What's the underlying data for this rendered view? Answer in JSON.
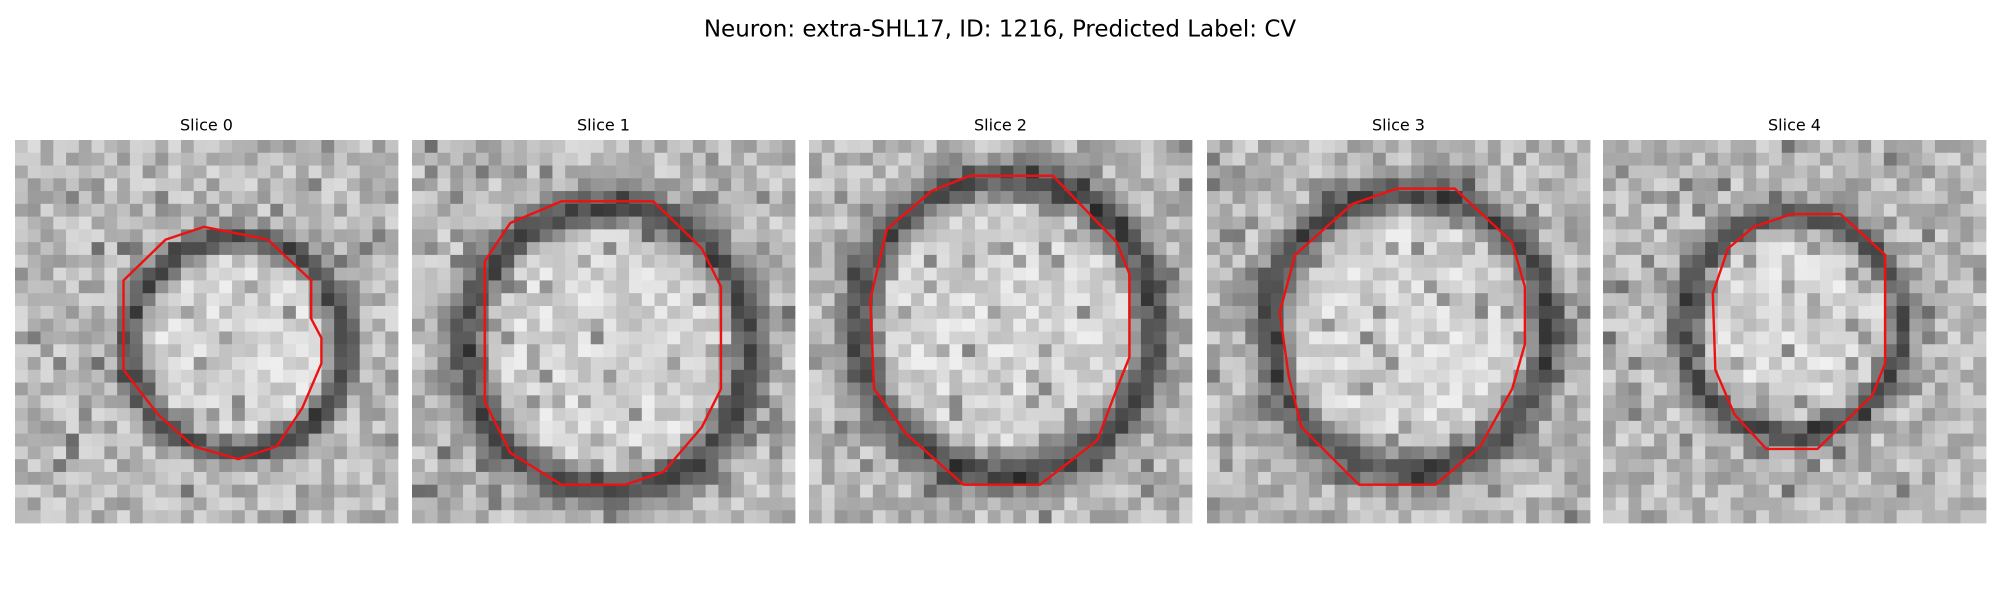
{
  "title": "Neuron: extra-SHL17, ID: 1216, Predicted Label: CV",
  "panels": [
    {
      "title": "Slice 0"
    },
    {
      "title": "Slice 1"
    },
    {
      "title": "Slice 2"
    },
    {
      "title": "Slice 3"
    },
    {
      "title": "Slice 4"
    }
  ]
}
